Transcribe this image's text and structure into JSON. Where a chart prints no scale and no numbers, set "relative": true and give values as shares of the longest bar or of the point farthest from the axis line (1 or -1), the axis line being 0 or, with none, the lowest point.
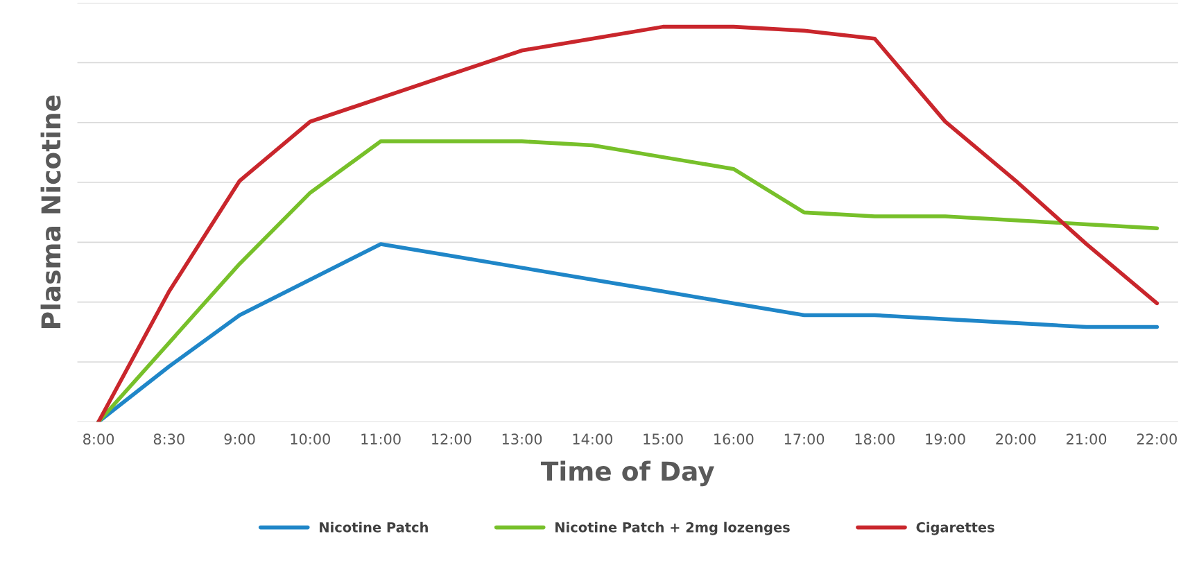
{
  "chart_data": {
    "type": "line",
    "relative": true,
    "xlabel": "Time of Day",
    "ylabel": "Plasma Nicotine",
    "categories": [
      "8:00",
      "8:30",
      "9:00",
      "10:00",
      "11:00",
      "12:00",
      "13:00",
      "14:00",
      "15:00",
      "16:00",
      "17:00",
      "18:00",
      "19:00",
      "20:00",
      "21:00",
      "22:00"
    ],
    "series": [
      {
        "name": "Nicotine Patch",
        "color": "#1f86c8",
        "values": [
          0,
          0.14,
          0.27,
          0.36,
          0.45,
          0.42,
          0.39,
          0.36,
          0.33,
          0.3,
          0.27,
          0.27,
          0.26,
          0.25,
          0.24,
          0.24
        ]
      },
      {
        "name": "Nicotine Patch + 2mg lozenges",
        "color": "#77c02a",
        "values": [
          0,
          0.2,
          0.4,
          0.58,
          0.71,
          0.71,
          0.71,
          0.7,
          0.67,
          0.64,
          0.53,
          0.52,
          0.52,
          0.51,
          0.5,
          0.49
        ]
      },
      {
        "name": "Cigarettes",
        "color": "#c9262c",
        "values": [
          0,
          0.33,
          0.61,
          0.76,
          0.82,
          0.88,
          0.94,
          0.97,
          1.0,
          1.0,
          0.99,
          0.97,
          0.76,
          0.61,
          0.45,
          0.3
        ]
      }
    ],
    "grid": "y",
    "legend": "bottom",
    "marker": "none",
    "line_style": "solid",
    "tick_labels": "x"
  }
}
